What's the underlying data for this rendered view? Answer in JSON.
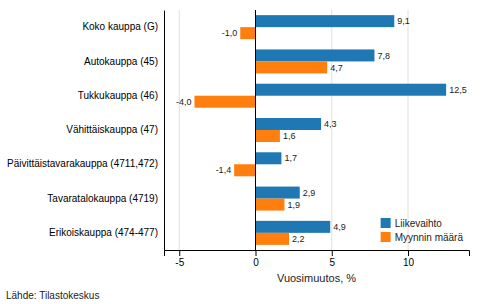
{
  "chart_data": {
    "type": "bar",
    "orientation": "horizontal",
    "categories": [
      "Erikoiskauppa (474-477)",
      "Tavaratalokauppa (4719)",
      "Päivittäistavarakauppa (4711,472)",
      "Vähittäiskauppa (47)",
      "Tukkukauppa (46)",
      "Autokauppa (45)",
      "Koko kauppa (G)"
    ],
    "series": [
      {
        "name": "Liikevaihto",
        "color": "#1f77b4",
        "values": [
          4.9,
          2.9,
          1.7,
          4.3,
          12.5,
          7.8,
          9.1
        ],
        "value_labels": [
          "4,9",
          "2,9",
          "1,7",
          "4,3",
          "12,5",
          "7,8",
          "9,1"
        ]
      },
      {
        "name": "Myynnin määrä",
        "color": "#ff7f0e",
        "values": [
          2.2,
          1.9,
          -1.4,
          1.6,
          -4.0,
          4.7,
          -1.0
        ],
        "value_labels": [
          "2,2",
          "1,9",
          "-1,4",
          "1,6",
          "-4,0",
          "4,7",
          "-1,0"
        ]
      }
    ],
    "xlabel": "Vuosimuutos, %",
    "annotations": [
      "Lähde: Tilastokeskus"
    ],
    "xlim": [
      -6,
      14
    ],
    "xticks": [
      -5,
      0,
      5,
      10
    ],
    "grid": true,
    "legend": "lower right",
    "data_labels": true
  }
}
